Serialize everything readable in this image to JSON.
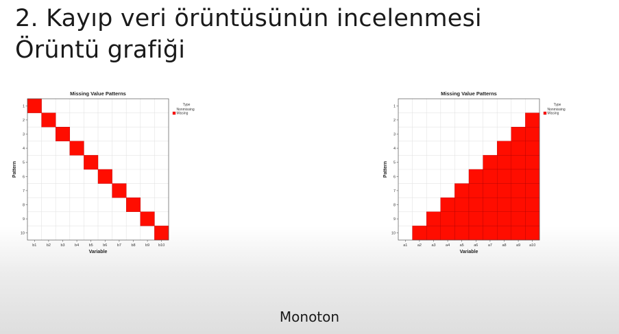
{
  "slide": {
    "title_line1": "2. Kayıp veri örüntüsünün incelenmesi",
    "title_line2": "Örüntü grafiği",
    "caption": "Monoton"
  },
  "colors": {
    "missing": "#ff0d00",
    "missing_edge": "#b30000",
    "grid": "#e3e3e3",
    "frame": "#555555"
  },
  "chart_data": [
    {
      "type": "heatmap",
      "title": "Missing Value Patterns",
      "xlabel": "Variable",
      "ylabel": "Pattern",
      "legend": {
        "title": "Type",
        "items": [
          "Nonmissing",
          "Missing"
        ],
        "placement": "right"
      },
      "grid": true,
      "categories": [
        "b1",
        "b2",
        "b3",
        "b4",
        "b5",
        "b6",
        "b7",
        "b8",
        "b9",
        "b10"
      ],
      "patterns": [
        "1",
        "2",
        "3",
        "4",
        "5",
        "6",
        "7",
        "8",
        "9",
        "10"
      ],
      "missing": [
        [
          1,
          0,
          0,
          0,
          0,
          0,
          0,
          0,
          0,
          0
        ],
        [
          0,
          1,
          0,
          0,
          0,
          0,
          0,
          0,
          0,
          0
        ],
        [
          0,
          0,
          1,
          0,
          0,
          0,
          0,
          0,
          0,
          0
        ],
        [
          0,
          0,
          0,
          1,
          0,
          0,
          0,
          0,
          0,
          0
        ],
        [
          0,
          0,
          0,
          0,
          1,
          0,
          0,
          0,
          0,
          0
        ],
        [
          0,
          0,
          0,
          0,
          0,
          1,
          0,
          0,
          0,
          0
        ],
        [
          0,
          0,
          0,
          0,
          0,
          0,
          1,
          0,
          0,
          0
        ],
        [
          0,
          0,
          0,
          0,
          0,
          0,
          0,
          1,
          0,
          0
        ],
        [
          0,
          0,
          0,
          0,
          0,
          0,
          0,
          0,
          1,
          0
        ],
        [
          0,
          0,
          0,
          0,
          0,
          0,
          0,
          0,
          0,
          1
        ]
      ]
    },
    {
      "type": "heatmap",
      "title": "Missing Value Patterns",
      "xlabel": "Variable",
      "ylabel": "Pattern",
      "legend": {
        "title": "Type",
        "items": [
          "Nonmissing",
          "Missing"
        ],
        "placement": "right"
      },
      "grid": true,
      "categories": [
        "a1",
        "a2",
        "a3",
        "a4",
        "a5",
        "a6",
        "a7",
        "a8",
        "a9",
        "a10"
      ],
      "patterns": [
        "1",
        "2",
        "3",
        "4",
        "5",
        "6",
        "7",
        "8",
        "9",
        "10"
      ],
      "missing": [
        [
          0,
          0,
          0,
          0,
          0,
          0,
          0,
          0,
          0,
          0
        ],
        [
          0,
          0,
          0,
          0,
          0,
          0,
          0,
          0,
          0,
          1
        ],
        [
          0,
          0,
          0,
          0,
          0,
          0,
          0,
          0,
          1,
          1
        ],
        [
          0,
          0,
          0,
          0,
          0,
          0,
          0,
          1,
          1,
          1
        ],
        [
          0,
          0,
          0,
          0,
          0,
          0,
          1,
          1,
          1,
          1
        ],
        [
          0,
          0,
          0,
          0,
          0,
          1,
          1,
          1,
          1,
          1
        ],
        [
          0,
          0,
          0,
          0,
          1,
          1,
          1,
          1,
          1,
          1
        ],
        [
          0,
          0,
          0,
          1,
          1,
          1,
          1,
          1,
          1,
          1
        ],
        [
          0,
          0,
          1,
          1,
          1,
          1,
          1,
          1,
          1,
          1
        ],
        [
          0,
          1,
          1,
          1,
          1,
          1,
          1,
          1,
          1,
          1
        ]
      ]
    }
  ]
}
